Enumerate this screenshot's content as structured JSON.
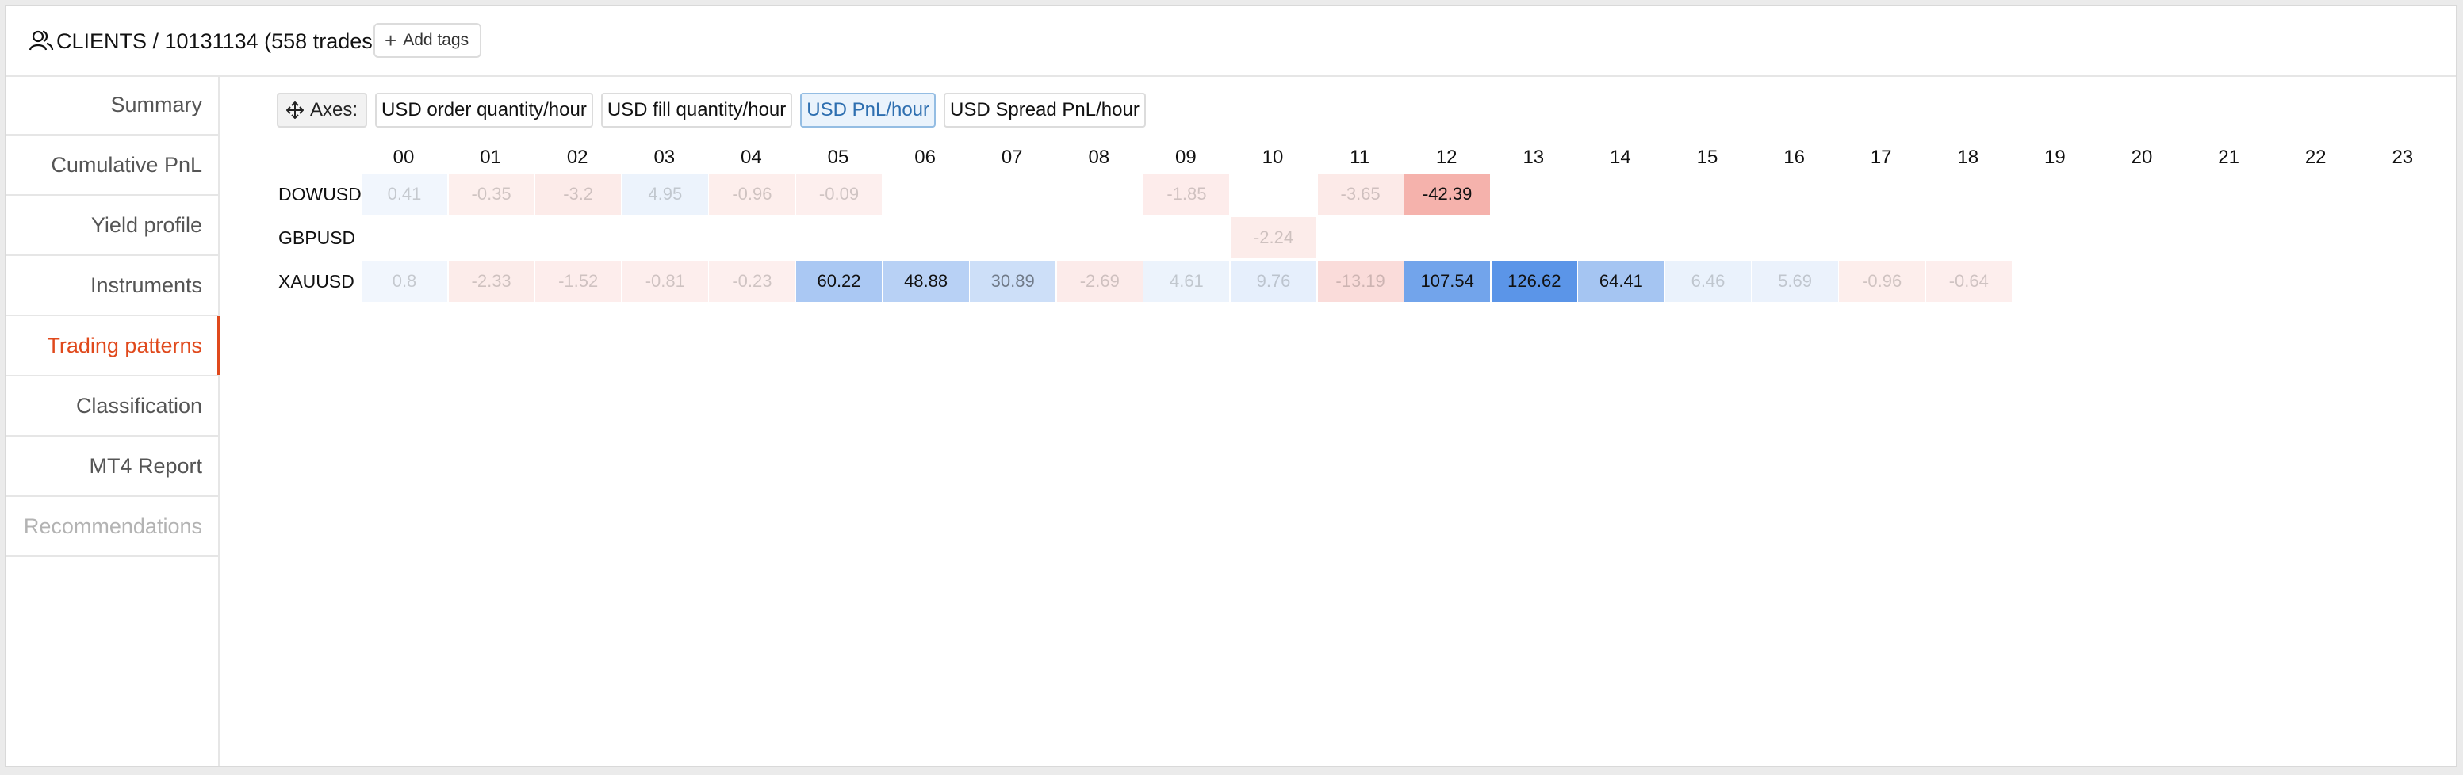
{
  "header": {
    "title": "CLIENTS / 10131134 (558 trades)",
    "add_tags_label": "Add tags"
  },
  "sidebar": {
    "items": [
      {
        "label": "Summary",
        "state": "normal"
      },
      {
        "label": "Cumulative PnL",
        "state": "normal"
      },
      {
        "label": "Yield profile",
        "state": "normal"
      },
      {
        "label": "Instruments",
        "state": "normal"
      },
      {
        "label": "Trading patterns",
        "state": "active"
      },
      {
        "label": "Classification",
        "state": "normal"
      },
      {
        "label": "MT4 Report",
        "state": "normal"
      },
      {
        "label": "Recommendations",
        "state": "disabled"
      }
    ]
  },
  "toolbar": {
    "axes_label": "Axes:",
    "tabs": [
      {
        "label": "USD order quantity/hour",
        "selected": false
      },
      {
        "label": "USD fill quantity/hour",
        "selected": false
      },
      {
        "label": "USD PnL/hour",
        "selected": true
      },
      {
        "label": "USD Spread PnL/hour",
        "selected": false
      }
    ]
  },
  "heatmap": {
    "hours": [
      "00",
      "01",
      "02",
      "03",
      "04",
      "05",
      "06",
      "07",
      "08",
      "09",
      "10",
      "11",
      "12",
      "13",
      "14",
      "15",
      "16",
      "17",
      "18",
      "19",
      "20",
      "21",
      "22",
      "23"
    ],
    "rows": [
      {
        "symbol": "DOWUSD",
        "values": [
          "0.41",
          "-0.35",
          "-3.2",
          "4.95",
          "-0.96",
          "-0.09",
          null,
          null,
          null,
          "-1.85",
          null,
          "-3.65",
          "-42.39",
          null,
          null,
          null,
          null,
          null,
          null,
          null,
          null,
          null,
          null,
          null
        ]
      },
      {
        "symbol": "GBPUSD",
        "values": [
          null,
          null,
          null,
          null,
          null,
          null,
          null,
          null,
          null,
          null,
          "-2.24",
          null,
          null,
          null,
          null,
          null,
          null,
          null,
          null,
          null,
          null,
          null,
          null,
          null
        ]
      },
      {
        "symbol": "XAUUSD",
        "values": [
          "0.8",
          "-2.33",
          "-1.52",
          "-0.81",
          "-0.23",
          "60.22",
          "48.88",
          "30.89",
          "-2.69",
          "4.61",
          "9.76",
          "-13.19",
          "107.54",
          "126.62",
          "64.41",
          "6.46",
          "5.69",
          "-0.96",
          "-0.64",
          null,
          null,
          null,
          null,
          null
        ]
      }
    ],
    "colors": {
      "negative": "#e5392a",
      "positive": "#5b95e8"
    }
  }
}
